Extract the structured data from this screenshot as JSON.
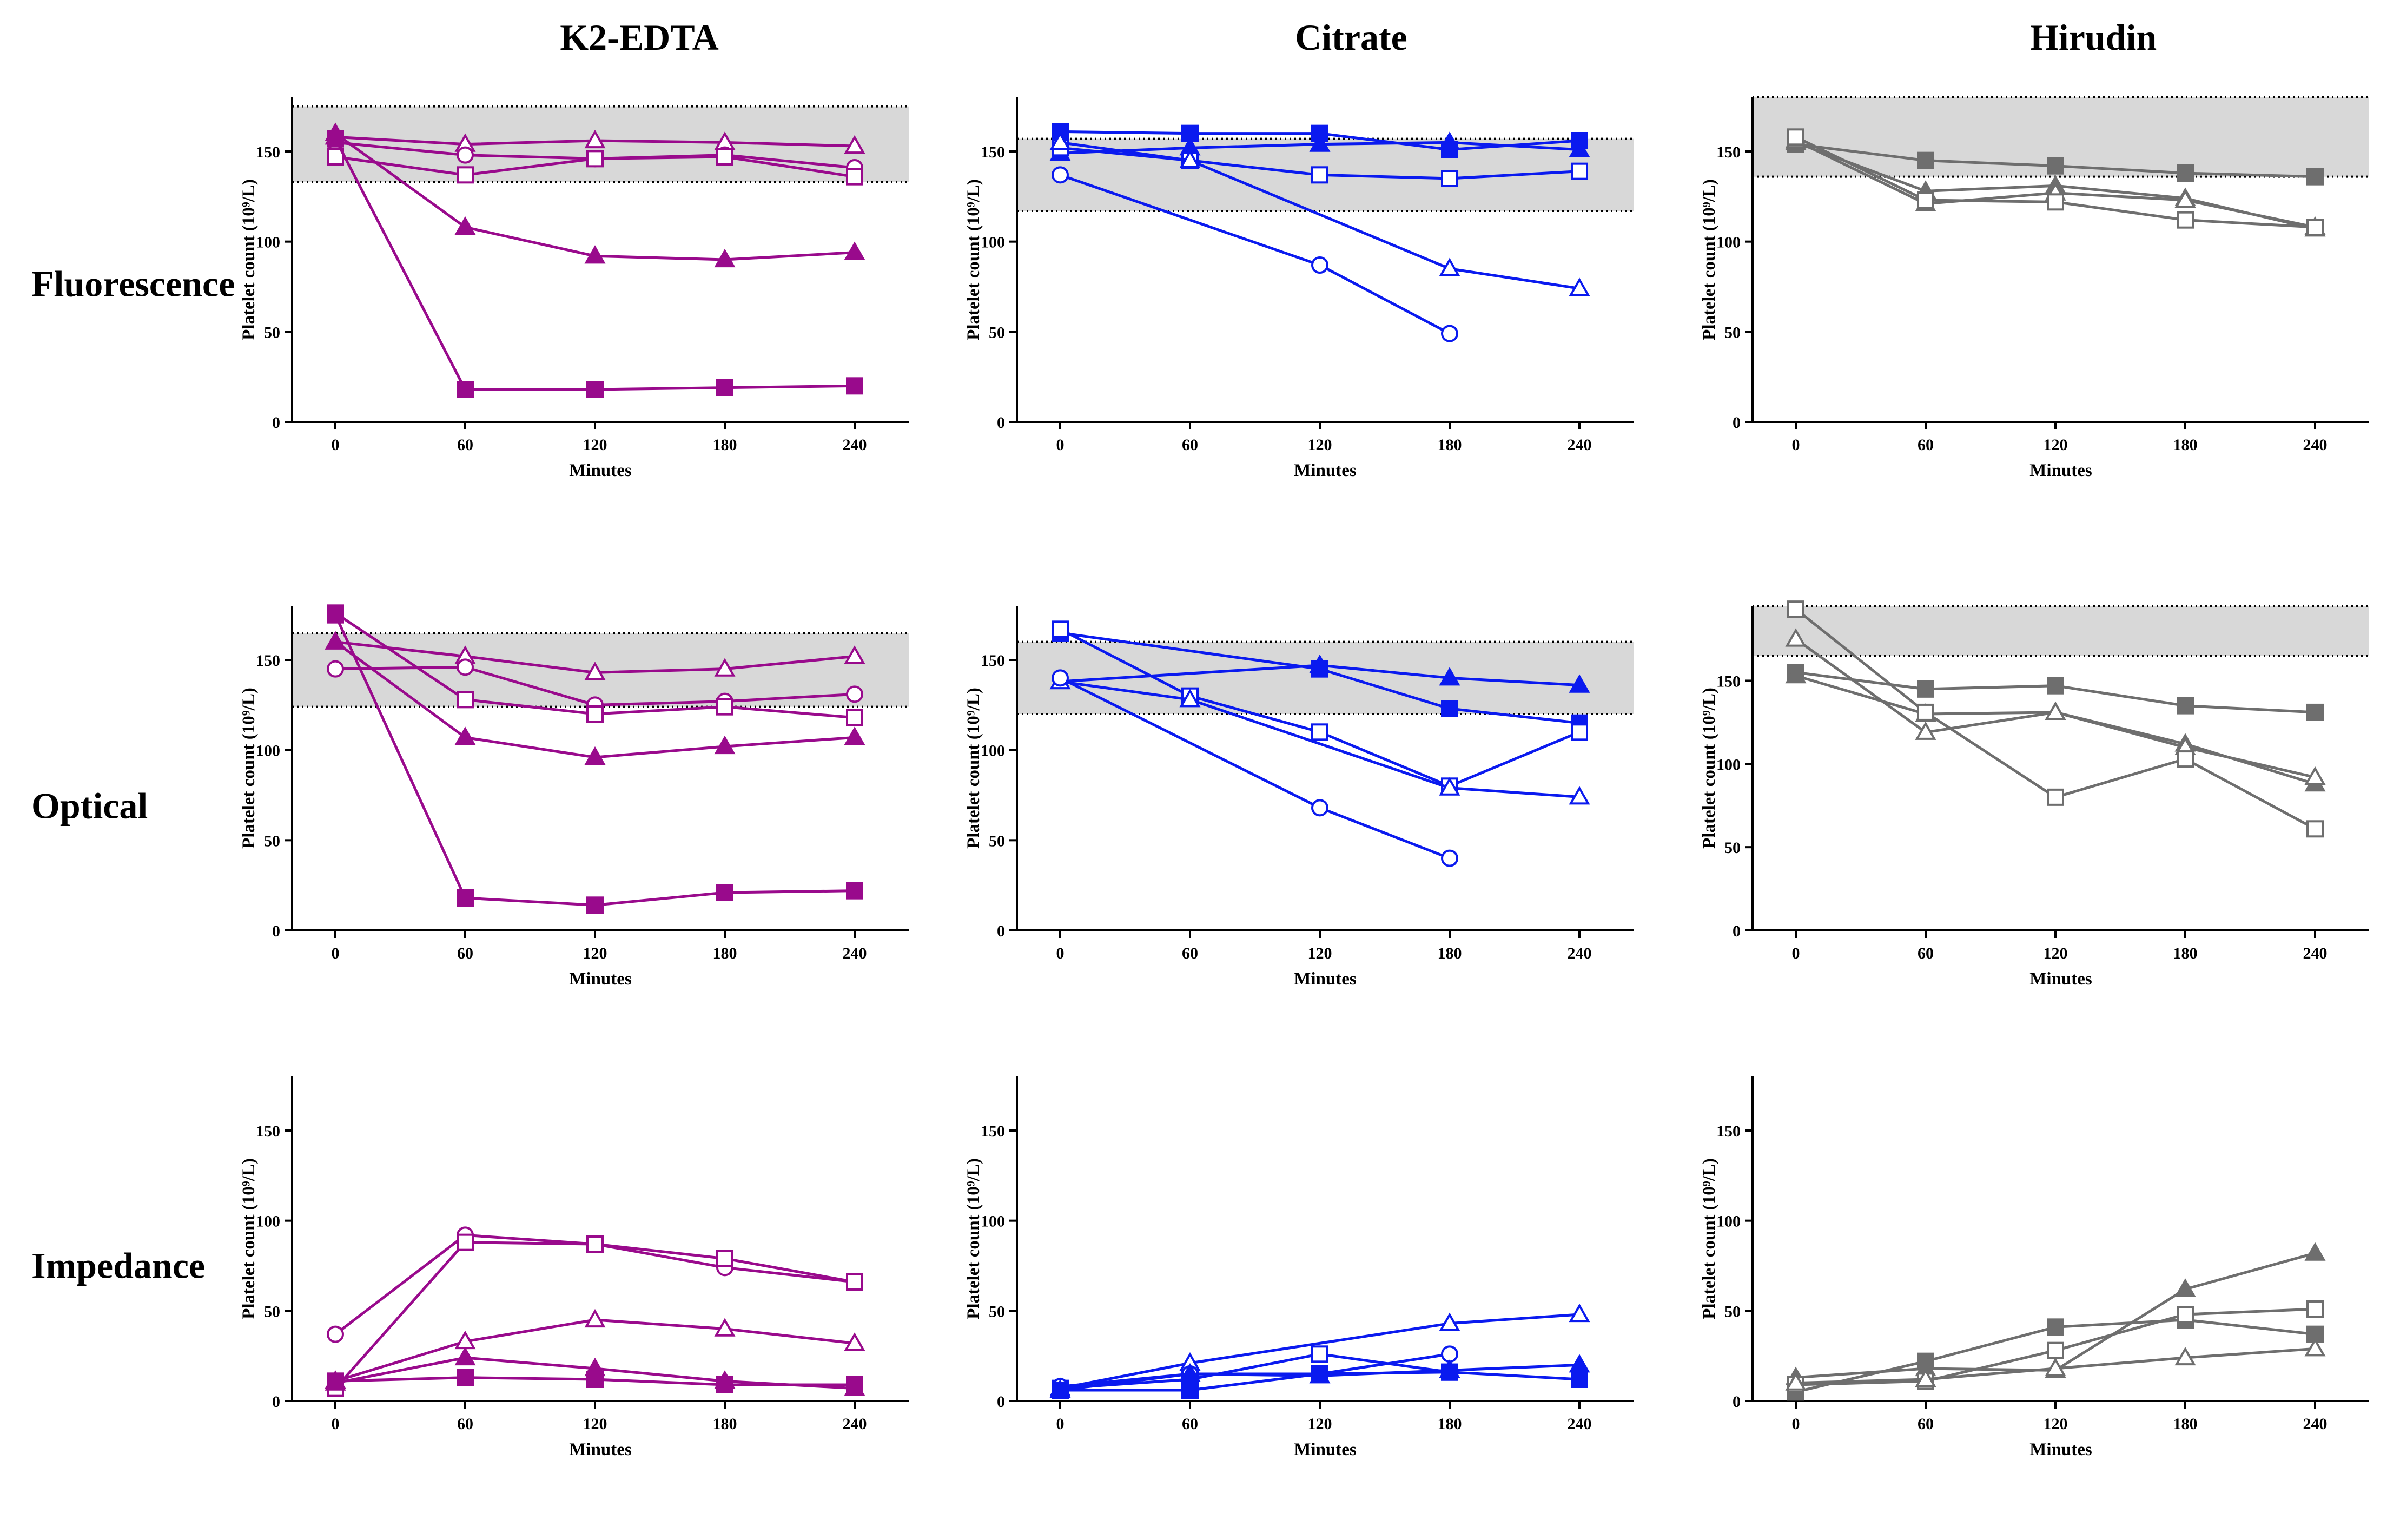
{
  "column_titles": [
    "K2-EDTA",
    "Citrate",
    "Hirudin"
  ],
  "row_titles": [
    "Fluorescence",
    "Optical",
    "Impedance"
  ],
  "colors": {
    "K2-EDTA": "#990a8c",
    "Citrate": "#0a1aef",
    "Hirudin": "#6e6e6e",
    "band": "#d8d8d8"
  },
  "chart_data": [
    {
      "id": "fluor-edta",
      "type": "line",
      "row": "Fluorescence",
      "col": "K2-EDTA",
      "xlabel": "Minutes",
      "ylabel": "Platelet count (10⁹/L)",
      "ylim": [
        0,
        180
      ],
      "xticks": [
        0,
        60,
        120,
        180,
        240
      ],
      "yticks": [
        0,
        50,
        100,
        150
      ],
      "reference_range": [
        133,
        175
      ],
      "series": [
        {
          "marker": "open-triangle",
          "values": [
            158,
            154,
            156,
            155,
            153
          ]
        },
        {
          "marker": "open-circle",
          "values": [
            155,
            148,
            146,
            148,
            141
          ]
        },
        {
          "marker": "open-square",
          "values": [
            147,
            137,
            146,
            147,
            136
          ]
        },
        {
          "marker": "filled-triangle",
          "values": [
            160,
            108,
            92,
            90,
            94
          ]
        },
        {
          "marker": "filled-square",
          "values": [
            157,
            18,
            18,
            19,
            20
          ]
        }
      ]
    },
    {
      "id": "fluor-citrate",
      "type": "line",
      "row": "Fluorescence",
      "col": "Citrate",
      "xlabel": "Minutes",
      "ylabel": "Platelet count (10⁹/L)",
      "ylim": [
        0,
        180
      ],
      "xticks": [
        0,
        60,
        120,
        180,
        240
      ],
      "yticks": [
        0,
        50,
        100,
        150
      ],
      "reference_range": [
        117,
        157
      ],
      "series": [
        {
          "marker": "filled-square",
          "values": [
            161,
            160,
            160,
            151,
            156
          ]
        },
        {
          "marker": "filled-triangle",
          "values": [
            149,
            152,
            154,
            155,
            151
          ]
        },
        {
          "marker": "open-square",
          "values": [
            152,
            145,
            137,
            135,
            139
          ]
        },
        {
          "marker": "open-triangle",
          "values": [
            155,
            145,
            null,
            85,
            74
          ]
        },
        {
          "marker": "open-circle",
          "values": [
            137,
            null,
            87,
            49,
            null
          ]
        }
      ]
    },
    {
      "id": "fluor-hirudin",
      "type": "line",
      "row": "Fluorescence",
      "col": "Hirudin",
      "xlabel": "Minutes",
      "ylabel": "Platelet count (10⁹/L)",
      "ylim": [
        0,
        180
      ],
      "xticks": [
        0,
        60,
        120,
        180,
        240
      ],
      "yticks": [
        0,
        50,
        100,
        150
      ],
      "reference_range": [
        136,
        180
      ],
      "series": [
        {
          "marker": "filled-square",
          "values": [
            154,
            145,
            142,
            138,
            136
          ]
        },
        {
          "marker": "filled-triangle",
          "values": [
            155,
            128,
            131,
            124,
            107
          ]
        },
        {
          "marker": "open-triangle",
          "values": [
            156,
            121,
            127,
            123,
            108
          ]
        },
        {
          "marker": "open-square",
          "values": [
            158,
            123,
            122,
            112,
            108
          ]
        }
      ]
    },
    {
      "id": "optical-edta",
      "type": "line",
      "row": "Optical",
      "col": "K2-EDTA",
      "xlabel": "Minutes",
      "ylabel": "Platelet count (10⁹/L)",
      "ylim": [
        0,
        180
      ],
      "xticks": [
        0,
        60,
        120,
        180,
        240
      ],
      "yticks": [
        0,
        50,
        100,
        150
      ],
      "reference_range": [
        124,
        165
      ],
      "series": [
        {
          "marker": "open-triangle",
          "values": [
            160,
            152,
            143,
            145,
            152
          ]
        },
        {
          "marker": "open-circle",
          "values": [
            145,
            146,
            125,
            127,
            131
          ]
        },
        {
          "marker": "open-square",
          "values": [
            176,
            128,
            120,
            124,
            118
          ]
        },
        {
          "marker": "filled-triangle",
          "values": [
            160,
            107,
            96,
            102,
            107
          ]
        },
        {
          "marker": "filled-square",
          "values": [
            175,
            18,
            14,
            21,
            22
          ]
        }
      ]
    },
    {
      "id": "optical-citrate",
      "type": "line",
      "row": "Optical",
      "col": "Citrate",
      "xlabel": "Minutes",
      "ylabel": "Platelet count (10⁹/L)",
      "ylim": [
        0,
        180
      ],
      "xticks": [
        0,
        60,
        120,
        180,
        240
      ],
      "yticks": [
        0,
        50,
        100,
        150
      ],
      "reference_range": [
        120,
        160
      ],
      "series": [
        {
          "marker": "filled-triangle",
          "values": [
            138,
            null,
            147,
            140,
            136
          ]
        },
        {
          "marker": "filled-square",
          "values": [
            165,
            null,
            145,
            123,
            115
          ]
        },
        {
          "marker": "open-square",
          "values": [
            167,
            130,
            110,
            80,
            110
          ]
        },
        {
          "marker": "open-triangle",
          "values": [
            138,
            128,
            null,
            79,
            74
          ]
        },
        {
          "marker": "open-circle",
          "values": [
            140,
            null,
            68,
            40,
            null
          ]
        }
      ]
    },
    {
      "id": "optical-hirudin",
      "type": "line",
      "row": "Optical",
      "col": "Hirudin",
      "xlabel": "Minutes",
      "ylabel": "Platelet count (10⁹/L)",
      "ylim": [
        0,
        195
      ],
      "xticks": [
        0,
        60,
        120,
        180,
        240
      ],
      "yticks": [
        0,
        50,
        100,
        150
      ],
      "reference_range": [
        165,
        195
      ],
      "series": [
        {
          "marker": "filled-square",
          "values": [
            155,
            145,
            147,
            135,
            131
          ]
        },
        {
          "marker": "filled-triangle",
          "values": [
            153,
            130,
            131,
            112,
            88
          ]
        },
        {
          "marker": "open-triangle",
          "values": [
            175,
            119,
            131,
            110,
            92
          ]
        },
        {
          "marker": "open-square",
          "values": [
            193,
            131,
            80,
            103,
            61
          ]
        }
      ]
    },
    {
      "id": "impedance-edta",
      "type": "line",
      "row": "Impedance",
      "col": "K2-EDTA",
      "xlabel": "Minutes",
      "ylabel": "Platelet count (10⁹/L)",
      "ylim": [
        0,
        180
      ],
      "xticks": [
        0,
        60,
        120,
        180,
        240
      ],
      "yticks": [
        0,
        50,
        100,
        150
      ],
      "reference_range": null,
      "series": [
        {
          "marker": "open-circle",
          "values": [
            37,
            92,
            87,
            74,
            66
          ]
        },
        {
          "marker": "open-square",
          "values": [
            7,
            88,
            87,
            79,
            66
          ]
        },
        {
          "marker": "open-triangle",
          "values": [
            11,
            33,
            45,
            40,
            32
          ]
        },
        {
          "marker": "filled-triangle",
          "values": [
            10,
            24,
            18,
            11,
            7
          ]
        },
        {
          "marker": "filled-square",
          "values": [
            11,
            13,
            12,
            9,
            9
          ]
        }
      ]
    },
    {
      "id": "impedance-citrate",
      "type": "line",
      "row": "Impedance",
      "col": "Citrate",
      "xlabel": "Minutes",
      "ylabel": "Platelet count (10⁹/L)",
      "ylim": [
        0,
        180
      ],
      "xticks": [
        0,
        60,
        120,
        180,
        240
      ],
      "yticks": [
        0,
        50,
        100,
        150
      ],
      "reference_range": null,
      "series": [
        {
          "marker": "open-triangle",
          "values": [
            7,
            21,
            null,
            43,
            48
          ]
        },
        {
          "marker": "open-square",
          "values": [
            7,
            12,
            26,
            16,
            null
          ]
        },
        {
          "marker": "open-circle",
          "values": [
            8,
            15,
            15,
            26,
            null
          ]
        },
        {
          "marker": "filled-triangle",
          "values": [
            6,
            15,
            14,
            17,
            20
          ]
        },
        {
          "marker": "filled-square",
          "values": [
            6,
            6,
            15,
            16,
            12
          ]
        }
      ]
    },
    {
      "id": "impedance-hirudin",
      "type": "line",
      "row": "Impedance",
      "col": "Hirudin",
      "xlabel": "Minutes",
      "ylabel": "Platelet count (10⁹/L)",
      "ylim": [
        0,
        180
      ],
      "xticks": [
        0,
        60,
        120,
        180,
        240
      ],
      "yticks": [
        0,
        50,
        100,
        150
      ],
      "reference_range": null,
      "series": [
        {
          "marker": "filled-triangle",
          "values": [
            13,
            18,
            17,
            62,
            82
          ]
        },
        {
          "marker": "filled-square",
          "values": [
            5,
            22,
            41,
            45,
            37
          ]
        },
        {
          "marker": "open-square",
          "values": [
            9,
            11,
            28,
            48,
            51
          ]
        },
        {
          "marker": "open-triangle",
          "values": [
            10,
            12,
            18,
            24,
            29
          ]
        }
      ]
    }
  ]
}
